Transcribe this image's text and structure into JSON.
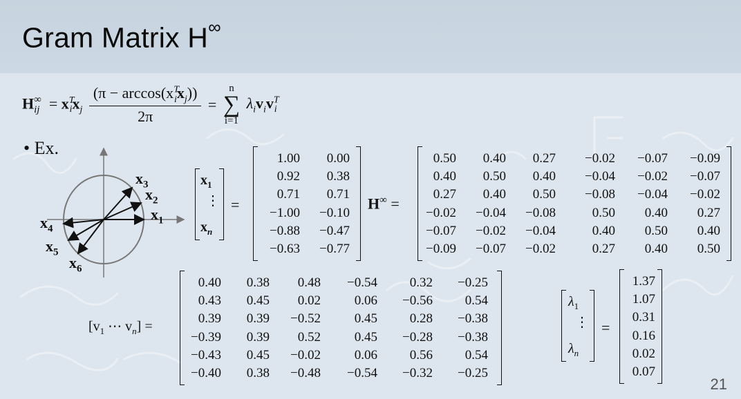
{
  "slide": {
    "title": "Gram Matrix H",
    "title_sup": "∞",
    "page_number": "21",
    "bullet": "• Ex."
  },
  "formula": {
    "lhs_symbol": "H",
    "lhs_sup": "∞",
    "lhs_sub": "ij",
    "equals": "=",
    "frac_numerator": "(π − arccos(x",
    "frac_denominator": "2π",
    "sum_top": "n",
    "sum_bottom": "i=1",
    "sum_symbol": "∑",
    "sum_term": "λ",
    "frac_var_x": "x",
    "frac_i": "i",
    "frac_j": "j",
    "frac_T": "T",
    "frac_close": "))"
  },
  "diagram": {
    "vectors": [
      "x3",
      "x2",
      "x1",
      "x4",
      "x5",
      "x6"
    ],
    "labels": {
      "x1": "x",
      "x2": "x",
      "x3": "x",
      "x4": "x",
      "x5": "x",
      "x6": "x"
    },
    "subscripts": {
      "x1": "1",
      "x2": "2",
      "x3": "3",
      "x4": "4",
      "x5": "5",
      "x6": "6"
    }
  },
  "x_matrix": {
    "lhs_top": "x",
    "lhs_top_sub": "1",
    "lhs_dots": "⋮",
    "lhs_bottom": "x",
    "lhs_bottom_sub": "n",
    "equals": "=",
    "rows": [
      [
        "1.00",
        "0.00"
      ],
      [
        "0.92",
        "0.38"
      ],
      [
        "0.71",
        "0.71"
      ],
      [
        "−1.00",
        "−0.10"
      ],
      [
        "−0.88",
        "−0.47"
      ],
      [
        "−0.63",
        "−0.77"
      ]
    ]
  },
  "h_matrix": {
    "label": "H",
    "label_sup": "∞",
    "equals": "=",
    "rows": [
      [
        "0.50",
        "0.40",
        "0.27",
        "−0.02",
        "−0.07",
        "−0.09"
      ],
      [
        "0.40",
        "0.50",
        "0.40",
        "−0.04",
        "−0.02",
        "−0.07"
      ],
      [
        "0.27",
        "0.40",
        "0.50",
        "−0.08",
        "−0.04",
        "−0.02"
      ],
      [
        "−0.02",
        "−0.04",
        "−0.08",
        "0.50",
        "0.40",
        "0.27"
      ],
      [
        "−0.07",
        "−0.02",
        "−0.04",
        "0.40",
        "0.50",
        "0.40"
      ],
      [
        "−0.09",
        "−0.07",
        "−0.02",
        "0.27",
        "0.40",
        "0.50"
      ]
    ]
  },
  "v_matrix": {
    "label": "[v",
    "label_sub1": "1",
    "label_mid": " ⋯ v",
    "label_subn": "n",
    "label_close": "] =",
    "rows": [
      [
        "0.40",
        "0.38",
        "0.48",
        "−0.54",
        "0.32",
        "−0.25"
      ],
      [
        "0.43",
        "0.45",
        "0.02",
        "0.06",
        "−0.56",
        "0.54"
      ],
      [
        "0.39",
        "0.39",
        "−0.52",
        "0.45",
        "0.28",
        "−0.38"
      ],
      [
        "−0.39",
        "0.39",
        "0.52",
        "0.45",
        "−0.28",
        "−0.38"
      ],
      [
        "−0.43",
        "0.45",
        "−0.02",
        "0.06",
        "0.56",
        "0.54"
      ],
      [
        "−0.40",
        "0.38",
        "−0.48",
        "−0.54",
        "−0.32",
        "−0.25"
      ]
    ]
  },
  "lambda_matrix": {
    "lhs_top": "λ",
    "lhs_top_sub": "1",
    "lhs_dots": "⋮",
    "lhs_bottom": "λ",
    "lhs_bottom_sub": "n",
    "equals": "=",
    "values": [
      "1.37",
      "1.07",
      "0.31",
      "0.16",
      "0.02",
      "0.07"
    ]
  }
}
